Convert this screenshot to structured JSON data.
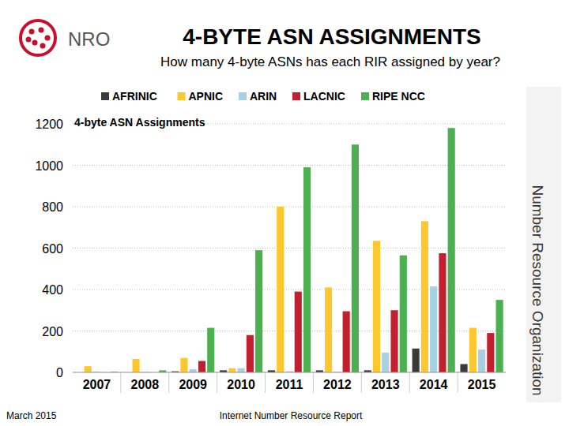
{
  "header": {
    "logo": "NRO",
    "title": "4-BYTE ASN ASSIGNMENTS",
    "subtitle": "How many 4-byte ASNs has each RIR assigned by year?"
  },
  "side_text": "Number Resource Organization",
  "footer": {
    "date": "March 2015",
    "report": "Internet Number Resource Report"
  },
  "chart_data": {
    "type": "bar",
    "title": "4-byte ASN Assignments",
    "categories": [
      "2007",
      "2008",
      "2009",
      "2010",
      "2011",
      "2012",
      "2013",
      "2014",
      "2015"
    ],
    "series": [
      {
        "name": "AFRINIC",
        "color": "#3a3a3a",
        "values": [
          0,
          0,
          5,
          10,
          10,
          10,
          10,
          115,
          40
        ]
      },
      {
        "name": "APNIC",
        "color": "#fdc82f",
        "values": [
          30,
          65,
          70,
          20,
          800,
          410,
          635,
          730,
          215
        ]
      },
      {
        "name": "ARIN",
        "color": "#a9d0e2",
        "values": [
          4,
          2,
          15,
          20,
          5,
          3,
          95,
          415,
          110
        ]
      },
      {
        "name": "LACNIC",
        "color": "#c21f2f",
        "values": [
          0,
          0,
          55,
          180,
          390,
          295,
          300,
          575,
          190
        ]
      },
      {
        "name": "RIPE NCC",
        "color": "#4caf50",
        "values": [
          3,
          10,
          215,
          590,
          990,
          1100,
          565,
          1180,
          350
        ]
      }
    ],
    "ylim": [
      0,
      1200
    ],
    "yticks": [
      0,
      200,
      400,
      600,
      800,
      1000,
      1200
    ],
    "grid": true,
    "legend": "top"
  }
}
